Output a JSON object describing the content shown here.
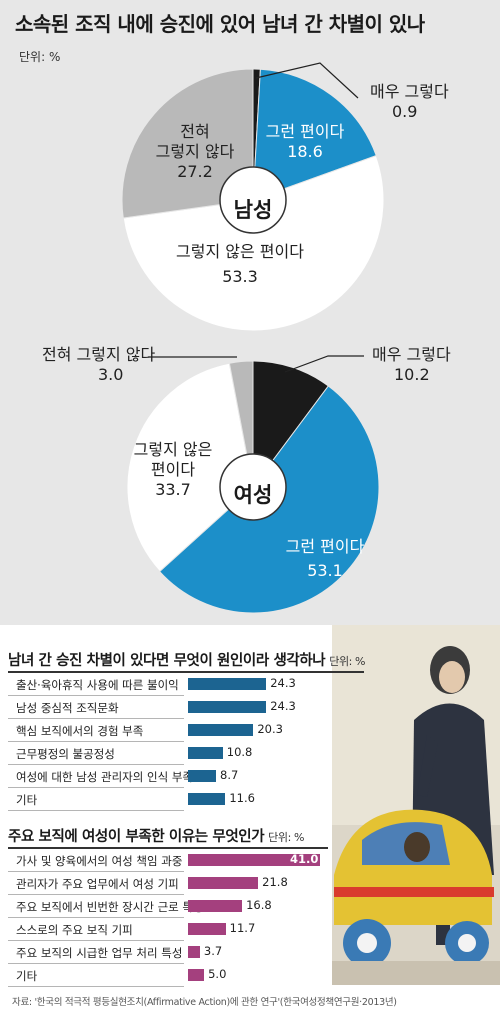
{
  "top": {
    "title": "소속된 조직 내에 승진에 있어 남녀 간 차별이 있나",
    "unit": "단위: %"
  },
  "chart_data": [
    {
      "type": "pie",
      "title": "남성",
      "slices": [
        {
          "label": "매우 그렇다",
          "value": 0.9,
          "color": "#1a1a1a"
        },
        {
          "label": "그런 편이다",
          "value": 18.6,
          "color": "#1c8fc9"
        },
        {
          "label": "그렇지 않은 편이다",
          "value": 53.3,
          "color": "#ffffff"
        },
        {
          "label": "전혀 그렇지 않다",
          "value": 27.2,
          "color": "#b9b9b9"
        }
      ]
    },
    {
      "type": "pie",
      "title": "여성",
      "slices": [
        {
          "label": "매우 그렇다",
          "value": 10.2,
          "color": "#1a1a1a"
        },
        {
          "label": "그런 편이다",
          "value": 53.1,
          "color": "#1c8fc9"
        },
        {
          "label": "그렇지 않은 편이다",
          "value": 33.7,
          "color": "#ffffff"
        },
        {
          "label": "전혀 그렇지 않다",
          "value": 3.0,
          "color": "#b9b9b9"
        }
      ]
    },
    {
      "type": "bar",
      "title": "남녀 간 승진 차별이 있다면 무엇이 원인이라 생각하나",
      "unit": "단위: %",
      "color": "#1c6491",
      "categories": [
        "출산·육아휴직 사용에 따른 불이익",
        "남성 중심적 조직문화",
        "핵심 보직에서의 경험 부족",
        "근무평정의 불공정성",
        "여성에 대한 남성 관리자의 인식 부족",
        "기타"
      ],
      "values": [
        24.3,
        24.3,
        20.3,
        10.8,
        8.7,
        11.6
      ]
    },
    {
      "type": "bar",
      "title": "주요 보직에 여성이 부족한 이유는 무엇인가",
      "unit": "단위: %",
      "color": "#a4407e",
      "categories": [
        "가사 및 양육에서의 여성 책임 과중",
        "관리자가 주요 업무에서 여성 기피",
        "주요 보직에서 빈번한 장시간 근로 특성",
        "스스로의 주요 보직 기피",
        "주요 보직의 시급한 업무 처리 특성",
        "기타"
      ],
      "values": [
        41.0,
        21.8,
        16.8,
        11.7,
        3.7,
        5.0
      ]
    }
  ],
  "pie_text": {
    "male": {
      "center": "남성",
      "very_label": "매우 그렇다",
      "very_value": "0.9",
      "some_label": "그런 편이다",
      "some_value": "18.6",
      "notmuch_label": "그렇지 않은 편이다",
      "notmuch_value": "53.3",
      "never_label_1": "전혀",
      "never_label_2": "그렇지 않다",
      "never_value": "27.2"
    },
    "female": {
      "center": "여성",
      "very_label": "매우 그렇다",
      "very_value": "10.2",
      "some_label": "그런 편이다",
      "some_value": "53.1",
      "notmuch_label_1": "그렇지 않은",
      "notmuch_label_2": "편이다",
      "notmuch_value": "33.7",
      "never_label": "전혀 그렇지 않다",
      "never_value": "3.0"
    }
  },
  "source": "자료: '한국의 적극적 평등실현조치(Affirmative Action)에 관한 연구'(한국여성정책연구원·2013년)"
}
